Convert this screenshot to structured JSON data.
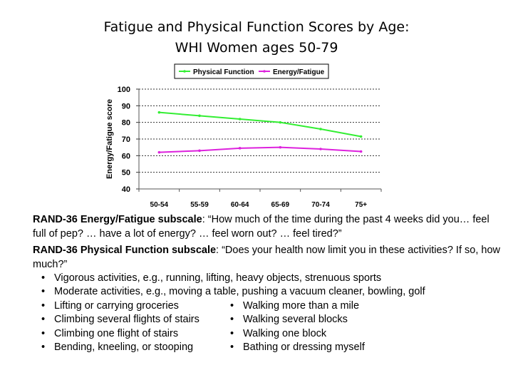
{
  "title_line1": "Fatigue and Physical Function Scores by Age:",
  "title_line2": "WHI Women ages 50-79",
  "chart_data": {
    "type": "line",
    "categories": [
      "50-54",
      "55-59",
      "60-64",
      "65-69",
      "70-74",
      "75+"
    ],
    "series": [
      {
        "name": "Physical Function",
        "values": [
          86,
          84,
          82,
          80,
          76,
          71.5
        ],
        "color": "#33ee33"
      },
      {
        "name": "Energy/Fatigue",
        "values": [
          62,
          63,
          64.5,
          65,
          64,
          62.5
        ],
        "color": "#dd22dd"
      }
    ],
    "ylabel": "Energy/Fatigue score",
    "ylim": [
      40,
      100
    ],
    "yticks": [
      40,
      50,
      60,
      70,
      80,
      90,
      100
    ],
    "grid": true,
    "legend": "top"
  },
  "energy": {
    "lead": "RAND-36 Energy/Fatigue subscale",
    "text": ": “How much of the time during the past 4 weeks did you… feel full of pep? … have a lot of energy? … feel worn out? … feel tired?”"
  },
  "physical": {
    "lead": "RAND-36 Physical Function subscale",
    "text": ": “Does your health now limit you in these activities? If so, how much?”"
  },
  "left_bullets": [
    "Vigorous activities, e.g., running, lifting, heavy objects, strenuous sports",
    "Moderate activities, e.g., moving a table, pushing a vacuum cleaner, bowling, golf",
    "Lifting or carrying groceries",
    "Climbing several flights of stairs",
    "Climbing one flight of stairs",
    "Bending, kneeling, or stooping"
  ],
  "right_bullets": [
    "Walking more than a mile",
    "Walking several blocks",
    "Walking one block",
    "Bathing or dressing myself"
  ]
}
